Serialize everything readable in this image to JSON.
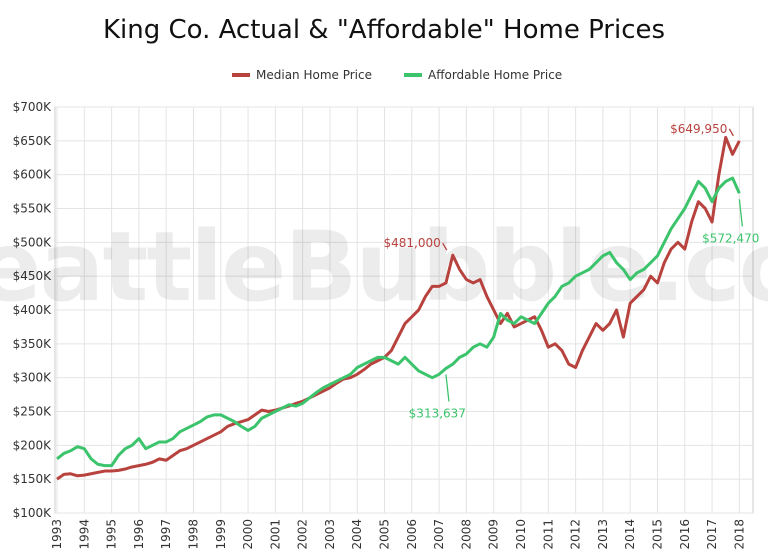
{
  "chart_data": {
    "type": "line",
    "title": "King Co. Actual & \"Affordable\" Home Prices",
    "watermark": "SeattleBubble.com",
    "legend": "top",
    "grid": true,
    "x": [
      1993,
      1993.25,
      1993.5,
      1993.75,
      1994,
      1994.25,
      1994.5,
      1994.75,
      1995,
      1995.25,
      1995.5,
      1995.75,
      1996,
      1996.25,
      1996.5,
      1996.75,
      1997,
      1997.25,
      1997.5,
      1997.75,
      1998,
      1998.25,
      1998.5,
      1998.75,
      1999,
      1999.25,
      1999.5,
      1999.75,
      2000,
      2000.25,
      2000.5,
      2000.75,
      2001,
      2001.25,
      2001.5,
      2001.75,
      2002,
      2002.25,
      2002.5,
      2002.75,
      2003,
      2003.25,
      2003.5,
      2003.75,
      2004,
      2004.25,
      2004.5,
      2004.75,
      2005,
      2005.25,
      2005.5,
      2005.75,
      2006,
      2006.25,
      2006.5,
      2006.75,
      2007,
      2007.25,
      2007.5,
      2007.75,
      2008,
      2008.25,
      2008.5,
      2008.75,
      2009,
      2009.25,
      2009.5,
      2009.75,
      2010,
      2010.25,
      2010.5,
      2010.75,
      2011,
      2011.25,
      2011.5,
      2011.75,
      2012,
      2012.25,
      2012.5,
      2012.75,
      2013,
      2013.25,
      2013.5,
      2013.75,
      2014,
      2014.25,
      2014.5,
      2014.75,
      2015,
      2015.25,
      2015.5,
      2015.75,
      2016,
      2016.25,
      2016.5,
      2016.75,
      2017,
      2017.25,
      2017.5,
      2017.75,
      2018
    ],
    "xlim": [
      1993,
      2018.5
    ],
    "xticks": [
      1993,
      1994,
      1995,
      1996,
      1997,
      1998,
      1999,
      2000,
      2001,
      2002,
      2003,
      2004,
      2005,
      2006,
      2007,
      2008,
      2009,
      2010,
      2011,
      2012,
      2013,
      2014,
      2015,
      2016,
      2017,
      2018
    ],
    "ylim": [
      100000,
      700000
    ],
    "yticks": [
      {
        "value": 100000,
        "label": "$100K"
      },
      {
        "value": 150000,
        "label": "$150K"
      },
      {
        "value": 200000,
        "label": "$200K"
      },
      {
        "value": 250000,
        "label": "$250K"
      },
      {
        "value": 300000,
        "label": "$300K"
      },
      {
        "value": 350000,
        "label": "$350K"
      },
      {
        "value": 400000,
        "label": "$400K"
      },
      {
        "value": 450000,
        "label": "$450K"
      },
      {
        "value": 500000,
        "label": "$500K"
      },
      {
        "value": 550000,
        "label": "$550K"
      },
      {
        "value": 600000,
        "label": "$600K"
      },
      {
        "value": 650000,
        "label": "$650K"
      },
      {
        "value": 700000,
        "label": "$700K"
      }
    ],
    "series": [
      {
        "name": "Median Home Price",
        "color": "#b8423e",
        "values": [
          150000,
          157000,
          158000,
          155000,
          156000,
          158000,
          160000,
          162000,
          162000,
          163000,
          165000,
          168000,
          170000,
          172000,
          175000,
          180000,
          178000,
          185000,
          192000,
          195000,
          200000,
          205000,
          210000,
          215000,
          220000,
          228000,
          232000,
          235000,
          238000,
          245000,
          252000,
          250000,
          252000,
          255000,
          258000,
          262000,
          265000,
          270000,
          275000,
          280000,
          285000,
          292000,
          298000,
          300000,
          305000,
          312000,
          320000,
          325000,
          330000,
          340000,
          360000,
          380000,
          390000,
          400000,
          420000,
          435000,
          435000,
          440000,
          481000,
          460000,
          445000,
          440000,
          445000,
          420000,
          400000,
          380000,
          395000,
          375000,
          380000,
          385000,
          390000,
          370000,
          345000,
          350000,
          340000,
          320000,
          315000,
          340000,
          360000,
          380000,
          370000,
          380000,
          400000,
          360000,
          410000,
          420000,
          430000,
          450000,
          440000,
          470000,
          490000,
          500000,
          490000,
          530000,
          560000,
          550000,
          530000,
          600000,
          655000,
          630000,
          649950
        ],
        "value_labels": [
          null,
          null,
          null,
          null,
          null,
          null,
          null,
          null,
          null,
          null,
          null,
          null,
          null,
          null,
          null,
          null,
          null,
          null,
          null,
          null,
          null,
          null,
          null,
          null,
          null,
          null,
          null,
          null,
          null,
          null,
          null,
          null,
          null,
          null,
          null,
          null,
          null,
          null,
          null,
          null,
          null,
          null,
          null,
          null,
          null,
          null,
          null,
          null,
          null,
          null,
          null,
          null,
          null,
          null,
          null,
          null,
          null,
          null,
          "$481,000",
          null,
          null,
          null,
          null,
          null,
          null,
          null,
          null,
          null,
          null,
          null,
          null,
          null,
          null,
          null,
          null,
          null,
          null,
          null,
          null,
          null,
          null,
          null,
          null,
          null,
          null,
          null,
          null,
          null,
          null,
          null,
          null,
          null,
          null,
          null,
          null,
          null,
          null,
          null,
          null,
          null,
          "$649,950"
        ]
      },
      {
        "name": "Affordable Home Price",
        "color": "#3cc46c",
        "values": [
          180000,
          188000,
          192000,
          198000,
          195000,
          180000,
          172000,
          170000,
          170000,
          185000,
          195000,
          200000,
          210000,
          195000,
          200000,
          205000,
          205000,
          210000,
          220000,
          225000,
          230000,
          235000,
          242000,
          245000,
          245000,
          240000,
          235000,
          228000,
          222000,
          228000,
          240000,
          245000,
          250000,
          255000,
          260000,
          258000,
          262000,
          270000,
          278000,
          285000,
          290000,
          295000,
          300000,
          305000,
          315000,
          320000,
          325000,
          330000,
          330000,
          325000,
          320000,
          330000,
          320000,
          310000,
          305000,
          300000,
          305000,
          313637,
          320000,
          330000,
          335000,
          345000,
          350000,
          345000,
          360000,
          395000,
          385000,
          380000,
          390000,
          385000,
          380000,
          395000,
          410000,
          420000,
          435000,
          440000,
          450000,
          455000,
          460000,
          470000,
          480000,
          485000,
          470000,
          460000,
          445000,
          455000,
          460000,
          470000,
          480000,
          500000,
          520000,
          535000,
          550000,
          570000,
          590000,
          580000,
          560000,
          580000,
          590000,
          595000,
          572470
        ],
        "value_labels": [
          null,
          null,
          null,
          null,
          null,
          null,
          null,
          null,
          null,
          null,
          null,
          null,
          null,
          null,
          null,
          null,
          null,
          null,
          null,
          null,
          null,
          null,
          null,
          null,
          null,
          null,
          null,
          null,
          null,
          null,
          null,
          null,
          null,
          null,
          null,
          null,
          null,
          null,
          null,
          null,
          null,
          null,
          null,
          null,
          null,
          null,
          null,
          null,
          null,
          null,
          null,
          null,
          null,
          null,
          null,
          null,
          null,
          "$313,637",
          null,
          null,
          null,
          null,
          null,
          null,
          null,
          null,
          null,
          null,
          null,
          null,
          null,
          null,
          null,
          null,
          null,
          null,
          null,
          null,
          null,
          null,
          null,
          null,
          null,
          null,
          null,
          null,
          null,
          null,
          null,
          null,
          null,
          null,
          null,
          null,
          null,
          null,
          null,
          null,
          null,
          null,
          "$572,470"
        ]
      }
    ]
  }
}
